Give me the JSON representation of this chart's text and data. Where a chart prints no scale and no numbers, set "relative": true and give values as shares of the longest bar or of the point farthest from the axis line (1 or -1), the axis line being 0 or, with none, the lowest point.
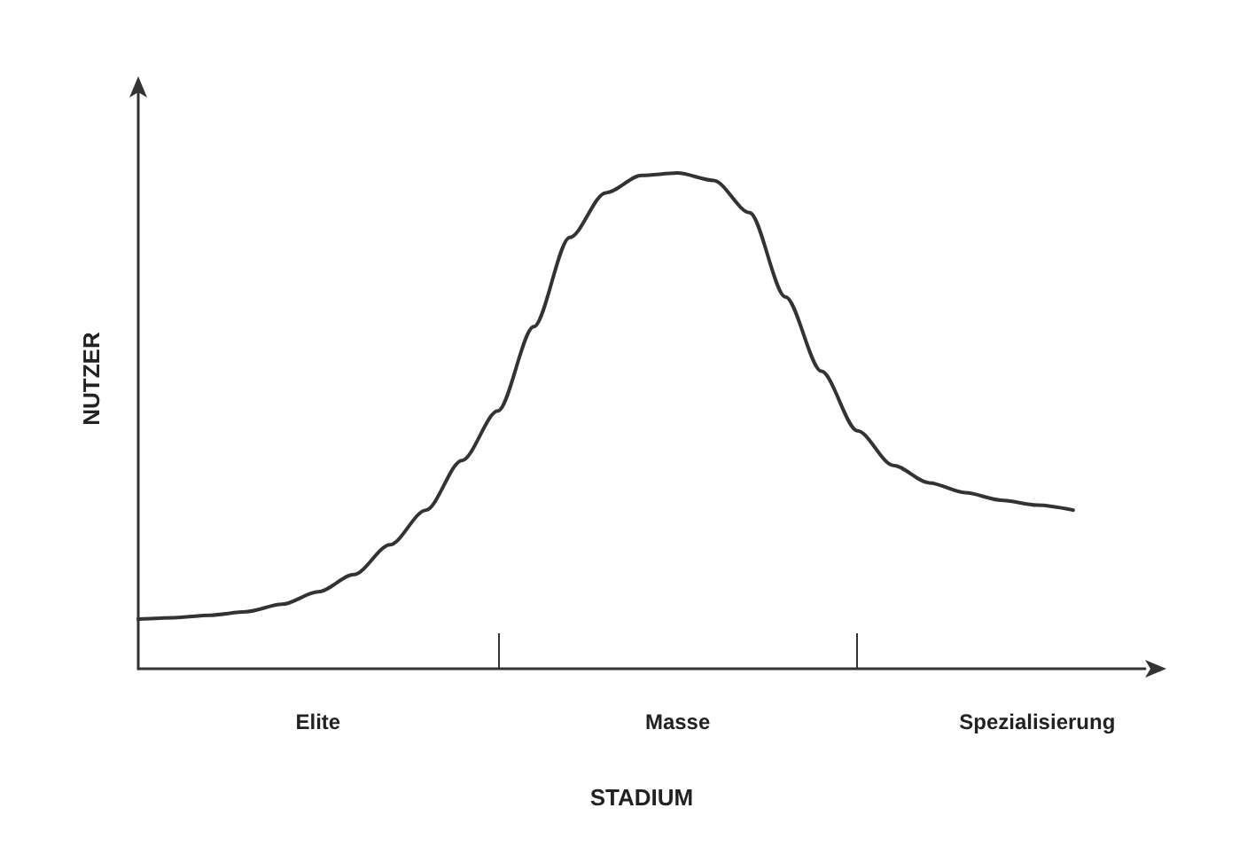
{
  "chart_data": {
    "type": "line",
    "relative": true,
    "xlabel": "STADIUM",
    "ylabel": "NUTZER",
    "categories": [
      null,
      null,
      null,
      null,
      null,
      "Elite",
      null,
      null,
      null,
      null,
      null,
      null,
      null,
      null,
      null,
      "Masse",
      null,
      null,
      null,
      null,
      null,
      null,
      null,
      null,
      null,
      "Spezialisierung",
      null,
      null,
      null
    ],
    "series": [
      {
        "color": "#333333",
        "values": [
          0.1,
          0.103,
          0.108,
          0.115,
          0.13,
          0.155,
          0.19,
          0.25,
          0.32,
          0.42,
          0.52,
          0.69,
          0.87,
          0.96,
          0.995,
          1,
          0.985,
          0.92,
          0.75,
          0.6,
          0.48,
          0.41,
          0.375,
          0.355,
          0.34,
          0.33,
          0.32,
          null,
          null
        ]
      }
    ],
    "grid": false,
    "marker": "none",
    "line_style": "solid"
  }
}
